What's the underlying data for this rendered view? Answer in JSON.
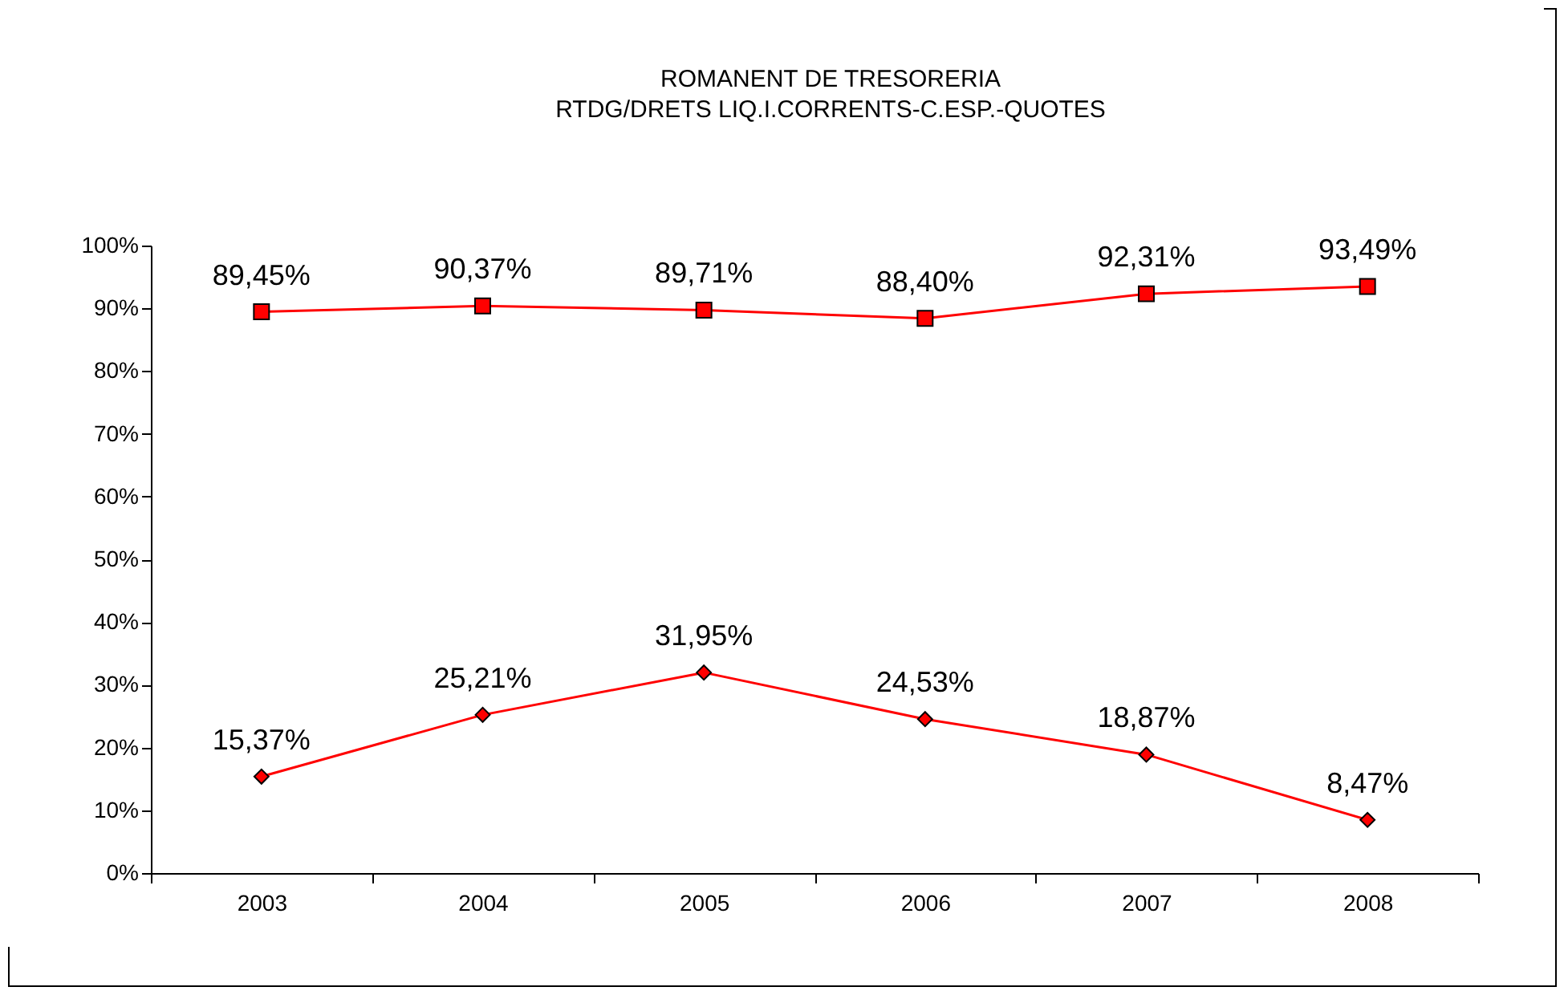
{
  "chart_data": {
    "type": "line",
    "title": "ROMANENT DE TRESORERIA",
    "subtitle": "RTDG/DRETS LIQ.I.CORRENTS-C.ESP.-QUOTES",
    "categories": [
      "2003",
      "2004",
      "2005",
      "2006",
      "2007",
      "2008"
    ],
    "series": [
      {
        "color": "#ff0000",
        "marker": "square",
        "values": [
          89.45,
          90.37,
          89.71,
          88.4,
          92.31,
          93.49
        ],
        "value_labels": [
          "89,45%",
          "90,37%",
          "89,71%",
          "88,40%",
          "92,31%",
          "93,49%"
        ]
      },
      {
        "color": "#ff0000",
        "marker": "diamond",
        "values": [
          15.37,
          25.21,
          31.95,
          24.53,
          18.87,
          8.47
        ],
        "value_labels": [
          "15,37%",
          "25,21%",
          "31,95%",
          "24,53%",
          "18,87%",
          "8,47%"
        ]
      }
    ],
    "ylim": [
      0,
      100
    ],
    "yticks": [
      {
        "value": 0,
        "label": "0%"
      },
      {
        "value": 10,
        "label": "10%"
      },
      {
        "value": 20,
        "label": "20%"
      },
      {
        "value": 30,
        "label": "30%"
      },
      {
        "value": 40,
        "label": "40%"
      },
      {
        "value": 50,
        "label": "50%"
      },
      {
        "value": 60,
        "label": "60%"
      },
      {
        "value": 70,
        "label": "70%"
      },
      {
        "value": 80,
        "label": "80%"
      },
      {
        "value": 90,
        "label": "90%"
      },
      {
        "value": 100,
        "label": "100%"
      }
    ],
    "grid": false,
    "line_style": "solid"
  }
}
